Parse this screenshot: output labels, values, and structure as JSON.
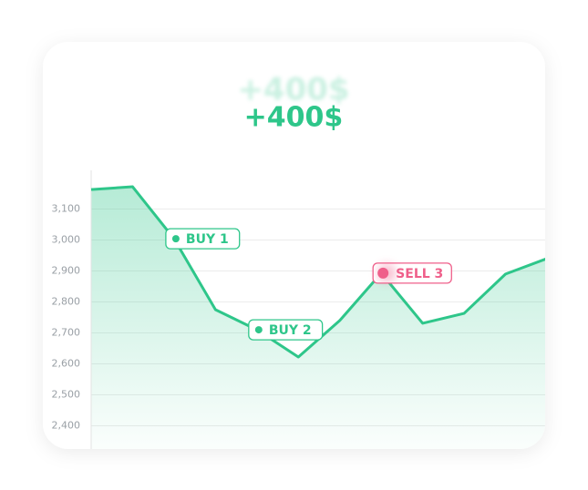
{
  "chart_data": {
    "type": "line",
    "title": "+400$",
    "values": [
      3163,
      3172,
      3004,
      2775,
      2710,
      2622,
      2740,
      2893,
      2731,
      2763,
      2890,
      2940
    ],
    "color": "#2ec68a",
    "ylim": [
      2325,
      3225
    ],
    "yticks": [
      {
        "value": 2400,
        "label": "2,400"
      },
      {
        "value": 2500,
        "label": "2,500"
      },
      {
        "value": 2600,
        "label": "2,600"
      },
      {
        "value": 2700,
        "label": "2,700"
      },
      {
        "value": 2800,
        "label": "2,800"
      },
      {
        "value": 2900,
        "label": "2,900"
      },
      {
        "value": 3000,
        "label": "3,000"
      },
      {
        "value": 3100,
        "label": "3,100"
      }
    ],
    "grid": true,
    "annotations": [
      {
        "text": "BUY 1",
        "index": 2,
        "color": "#2ec68a"
      },
      {
        "text": "BUY 2",
        "index": 4,
        "color": "#2ec68a"
      },
      {
        "text": "SELL 3",
        "index": 7,
        "color": "#ef5f8a"
      }
    ]
  }
}
